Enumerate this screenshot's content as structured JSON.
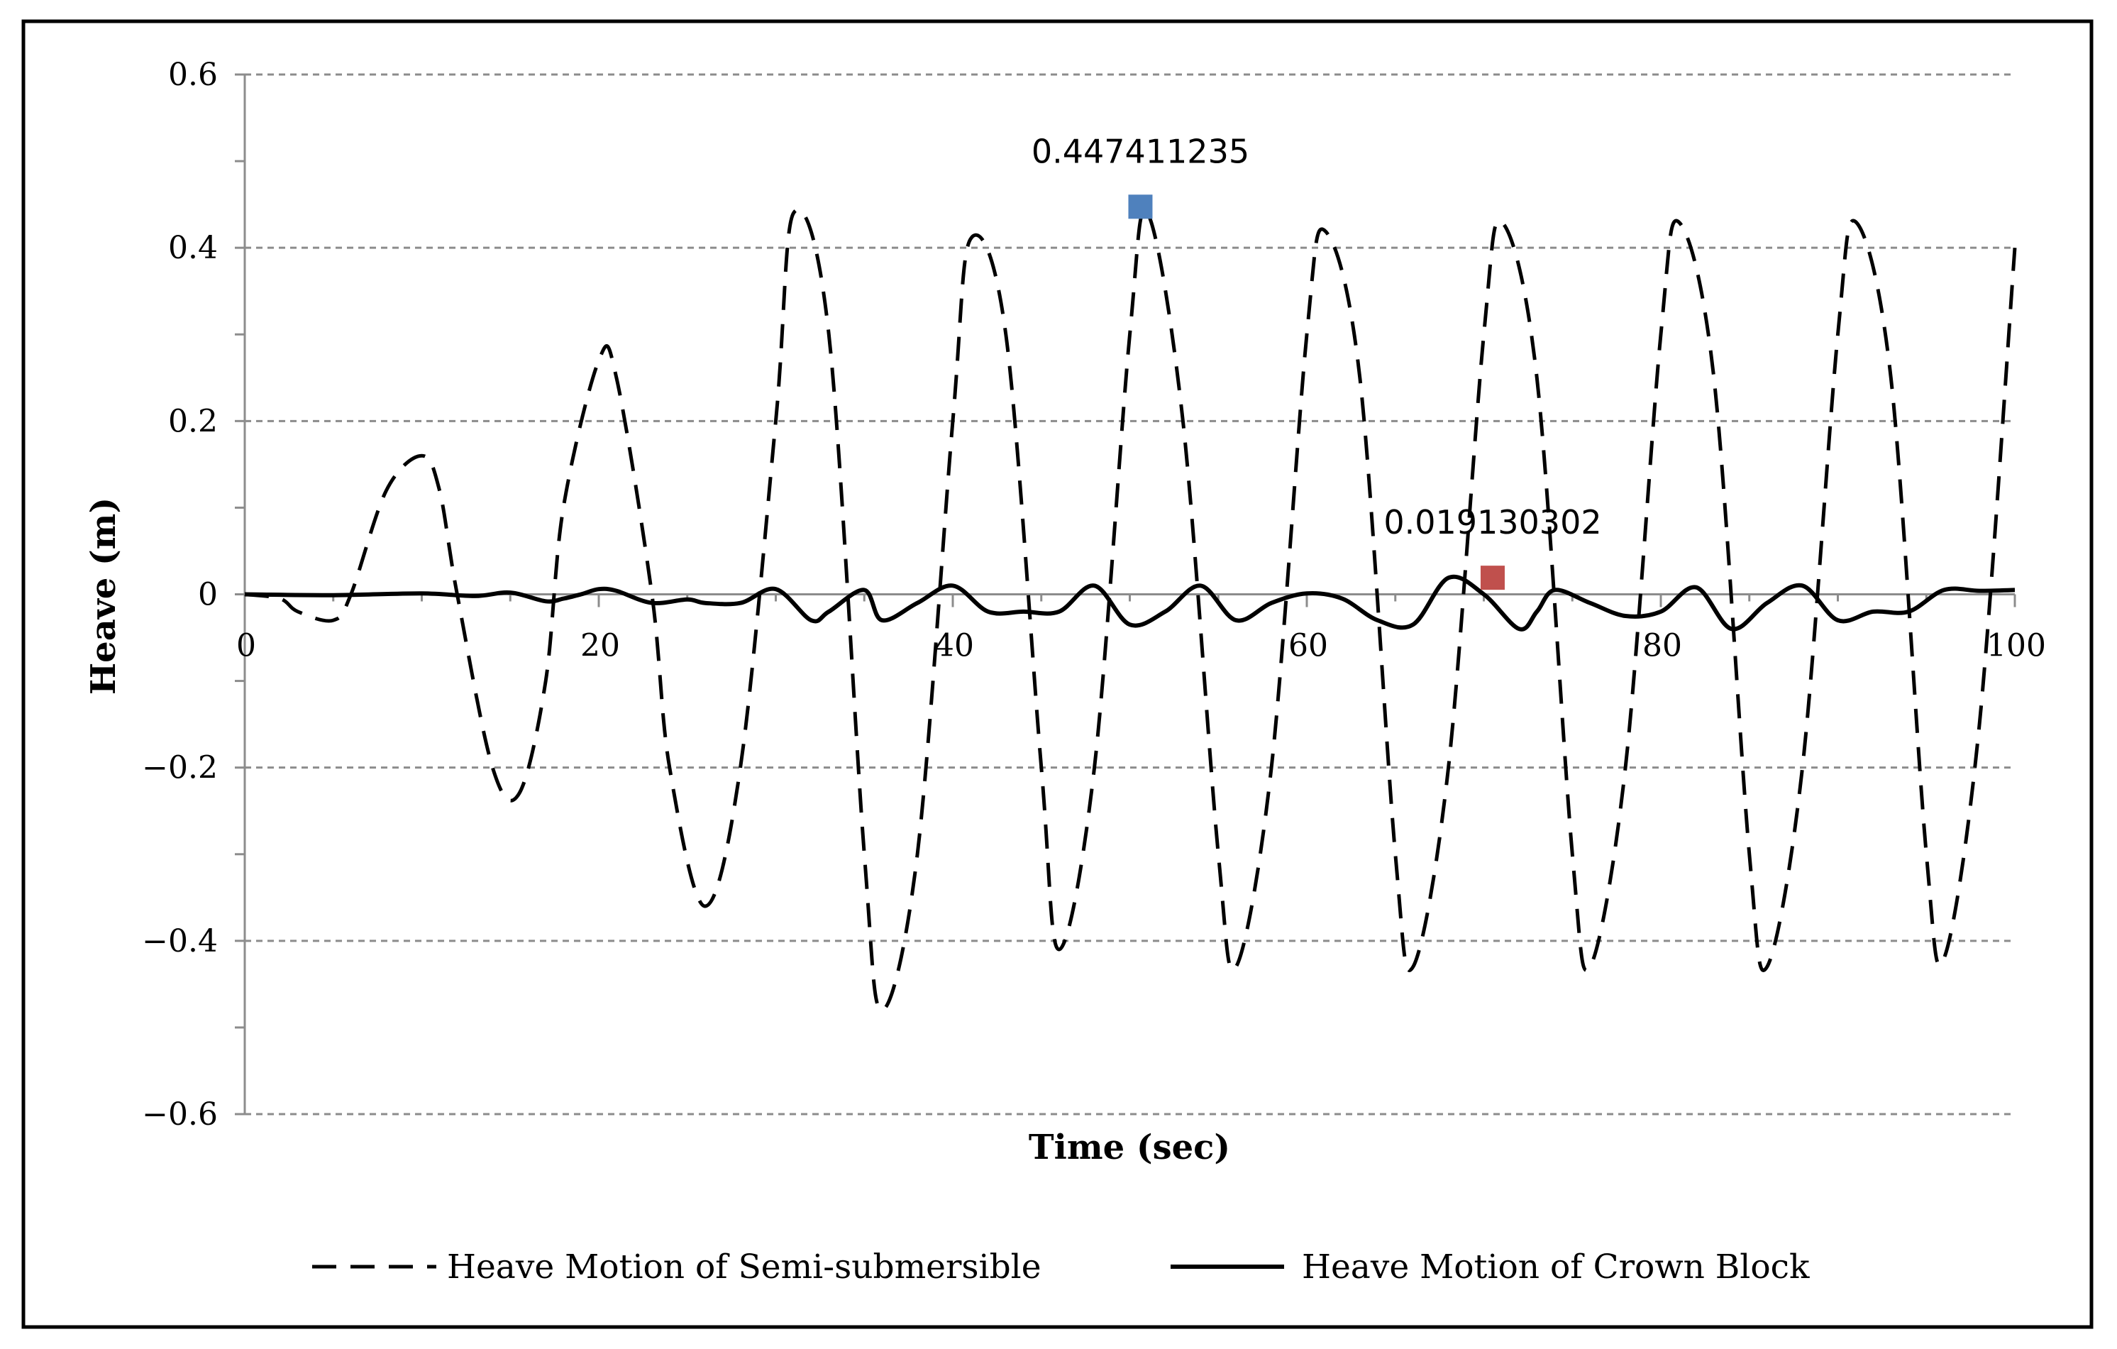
{
  "chart_data": {
    "type": "line",
    "title": "",
    "xlabel": "Time (sec)",
    "ylabel": "Heave (m)",
    "xlim": [
      0,
      100
    ],
    "ylim": [
      -0.6,
      0.6
    ],
    "xticks": [
      0,
      20,
      40,
      60,
      80,
      100
    ],
    "xtick_labels": [
      "0",
      "20",
      "40",
      "60",
      "80",
      "100"
    ],
    "yticks": [
      0.6,
      0.4,
      0.2,
      0,
      -0.2,
      -0.4,
      -0.6
    ],
    "ytick_labels": [
      "0.6",
      "0.4",
      "0.2",
      "0",
      "−0.2",
      "−0.4",
      "−0.6"
    ],
    "grid": "horizontal dashed",
    "legend_position": "bottom",
    "series": [
      {
        "name": "Heave Motion of Semi-submersible",
        "style": "dashed",
        "color": "#000000",
        "x": [
          0,
          2,
          3,
          5,
          6,
          8,
          10,
          11,
          12,
          14,
          15.5,
          17,
          18,
          20,
          21,
          23,
          24,
          26,
          28,
          30,
          31,
          33,
          35,
          36,
          38,
          40,
          41,
          43,
          45,
          46,
          48,
          50,
          51,
          53,
          55,
          56,
          58,
          60,
          61,
          63,
          65,
          66,
          68,
          70,
          71,
          73,
          75,
          76,
          78,
          80,
          81,
          83,
          85,
          86,
          88,
          90,
          91,
          93,
          95,
          96,
          98,
          100
        ],
        "y": [
          0,
          -0.005,
          -0.02,
          -0.03,
          0.0,
          0.12,
          0.16,
          0.12,
          0.0,
          -0.2,
          -0.23,
          -0.1,
          0.1,
          0.27,
          0.25,
          0.0,
          -0.2,
          -0.36,
          -0.2,
          0.2,
          0.44,
          0.3,
          -0.3,
          -0.48,
          -0.3,
          0.2,
          0.41,
          0.3,
          -0.2,
          -0.41,
          -0.2,
          0.3,
          0.44,
          0.2,
          -0.3,
          -0.43,
          -0.2,
          0.3,
          0.42,
          0.25,
          -0.3,
          -0.43,
          -0.2,
          0.3,
          0.43,
          0.25,
          -0.3,
          -0.43,
          -0.2,
          0.3,
          0.43,
          0.25,
          -0.3,
          -0.43,
          -0.2,
          0.3,
          0.43,
          0.25,
          -0.3,
          -0.42,
          -0.15,
          0.4
        ]
      },
      {
        "name": "Heave Motion of Crown Block",
        "style": "solid",
        "color": "#000000",
        "x": [
          0,
          5,
          10,
          13,
          15,
          17,
          18,
          19,
          20,
          21,
          23,
          25,
          26,
          28,
          30,
          32,
          33,
          35,
          36,
          38,
          40,
          42,
          44,
          46,
          48,
          50,
          52,
          54,
          56,
          58,
          60,
          62,
          64,
          66,
          68,
          70,
          72,
          73,
          74,
          76,
          78,
          80,
          82,
          84,
          86,
          88,
          90,
          92,
          94,
          96,
          98,
          100
        ],
        "y": [
          0,
          -0.001,
          0.001,
          -0.002,
          0.002,
          -0.008,
          -0.005,
          0.0,
          0.006,
          0.004,
          -0.01,
          -0.006,
          -0.01,
          -0.01,
          0.006,
          -0.03,
          -0.02,
          0.005,
          -0.03,
          -0.01,
          0.01,
          -0.02,
          -0.02,
          -0.02,
          0.01,
          -0.035,
          -0.02,
          0.01,
          -0.03,
          -0.01,
          0.001,
          -0.005,
          -0.03,
          -0.035,
          0.019,
          0.0,
          -0.04,
          -0.02,
          0.005,
          -0.01,
          -0.025,
          -0.02,
          0.008,
          -0.04,
          -0.01,
          0.01,
          -0.03,
          -0.02,
          -0.02,
          0.005,
          0.004,
          0.005
        ]
      }
    ],
    "annotations": [
      {
        "text": "0.447411235",
        "x": 50.6,
        "y": 0.447411235,
        "marker_color": "#4F81BD",
        "marker": "square"
      },
      {
        "text": "0.019130302",
        "x": 70.5,
        "y": 0.019130302,
        "marker_color": "#C0504D",
        "marker": "square"
      }
    ]
  }
}
